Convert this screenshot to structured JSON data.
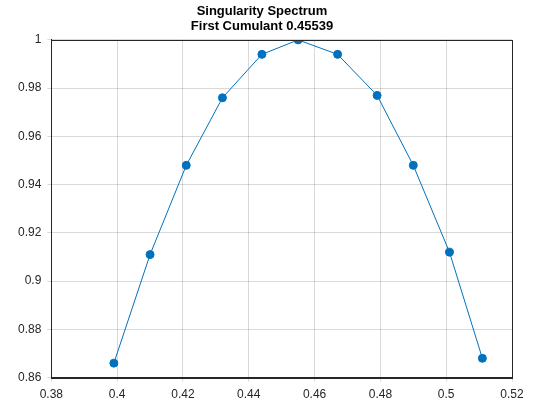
{
  "chart_data": {
    "type": "line",
    "title": [
      "Singularity Spectrum",
      "First Cumulant 0.45539"
    ],
    "x": [
      0.399,
      0.41,
      0.421,
      0.432,
      0.444,
      0.455,
      0.467,
      0.479,
      0.49,
      0.501,
      0.511
    ],
    "values": [
      0.866,
      0.911,
      0.948,
      0.976,
      0.994,
      1.0,
      0.994,
      0.977,
      0.948,
      0.912,
      0.868
    ],
    "color": "#0072bd",
    "marker": "circle",
    "xlim": [
      0.38,
      0.52
    ],
    "xticks": [
      0.38,
      0.4,
      0.42,
      0.44,
      0.46,
      0.48,
      0.5,
      0.52
    ],
    "ylim": [
      0.86,
      1
    ],
    "yticks": [
      0.86,
      0.88,
      0.9,
      0.92,
      0.94,
      0.96,
      0.98,
      1
    ],
    "grid": true
  }
}
